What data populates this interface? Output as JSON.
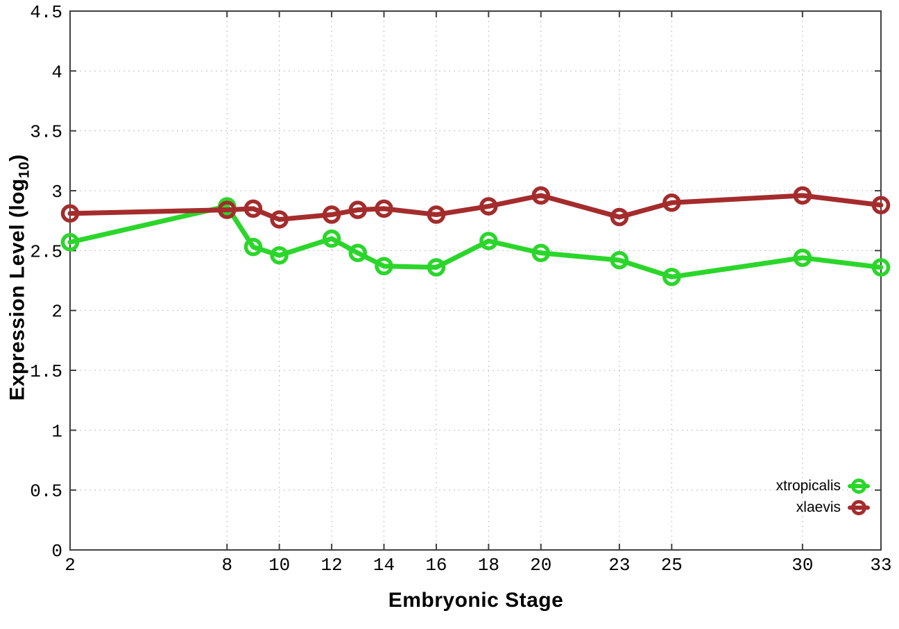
{
  "chart_data": {
    "type": "line",
    "title": "",
    "xlabel": "Embryonic Stage",
    "ylabel": "Expression Level (log10)",
    "ylabel_parts": {
      "prefix": "Expression Level (log",
      "subscript": "10",
      "suffix": ")"
    },
    "xlim": [
      2,
      33
    ],
    "ylim": [
      0,
      4.5
    ],
    "grid": true,
    "legend_position": "bottom-right",
    "x_ticks": [
      {
        "v": 2,
        "label": "2"
      },
      {
        "v": 8,
        "label": "8"
      },
      {
        "v": 10,
        "label": "10"
      },
      {
        "v": 12,
        "label": "12"
      },
      {
        "v": 14,
        "label": "14"
      },
      {
        "v": 16,
        "label": "16"
      },
      {
        "v": 18,
        "label": "18"
      },
      {
        "v": 20,
        "label": "20"
      },
      {
        "v": 23,
        "label": "23"
      },
      {
        "v": 25,
        "label": "25"
      },
      {
        "v": 30,
        "label": "30"
      },
      {
        "v": 33,
        "label": "33"
      }
    ],
    "y_ticks": [
      {
        "v": 0,
        "label": "0"
      },
      {
        "v": 0.5,
        "label": "0.5"
      },
      {
        "v": 1,
        "label": "1"
      },
      {
        "v": 1.5,
        "label": "1.5"
      },
      {
        "v": 2,
        "label": "2"
      },
      {
        "v": 2.5,
        "label": "2.5"
      },
      {
        "v": 3,
        "label": "3"
      },
      {
        "v": 3.5,
        "label": "3.5"
      },
      {
        "v": 4,
        "label": "4"
      },
      {
        "v": 4.5,
        "label": "4.5"
      }
    ],
    "x": [
      2,
      8,
      9,
      10,
      12,
      13,
      14,
      16,
      18,
      20,
      23,
      25,
      30,
      33
    ],
    "series": [
      {
        "name": "xtropicalis",
        "color": "#2bd62b",
        "values": [
          2.57,
          2.87,
          2.53,
          2.46,
          2.6,
          2.48,
          2.37,
          2.36,
          2.58,
          2.48,
          2.42,
          2.28,
          2.44,
          2.36
        ]
      },
      {
        "name": "xlaevis",
        "color": "#a42c2c",
        "values": [
          2.81,
          2.84,
          2.85,
          2.76,
          2.8,
          2.84,
          2.85,
          2.8,
          2.87,
          2.96,
          2.78,
          2.9,
          2.96,
          2.88
        ]
      }
    ],
    "colors": {
      "grid": "#bcbcbc",
      "border": "#404040",
      "tick_text": "#000000",
      "background": "#ffffff"
    }
  }
}
